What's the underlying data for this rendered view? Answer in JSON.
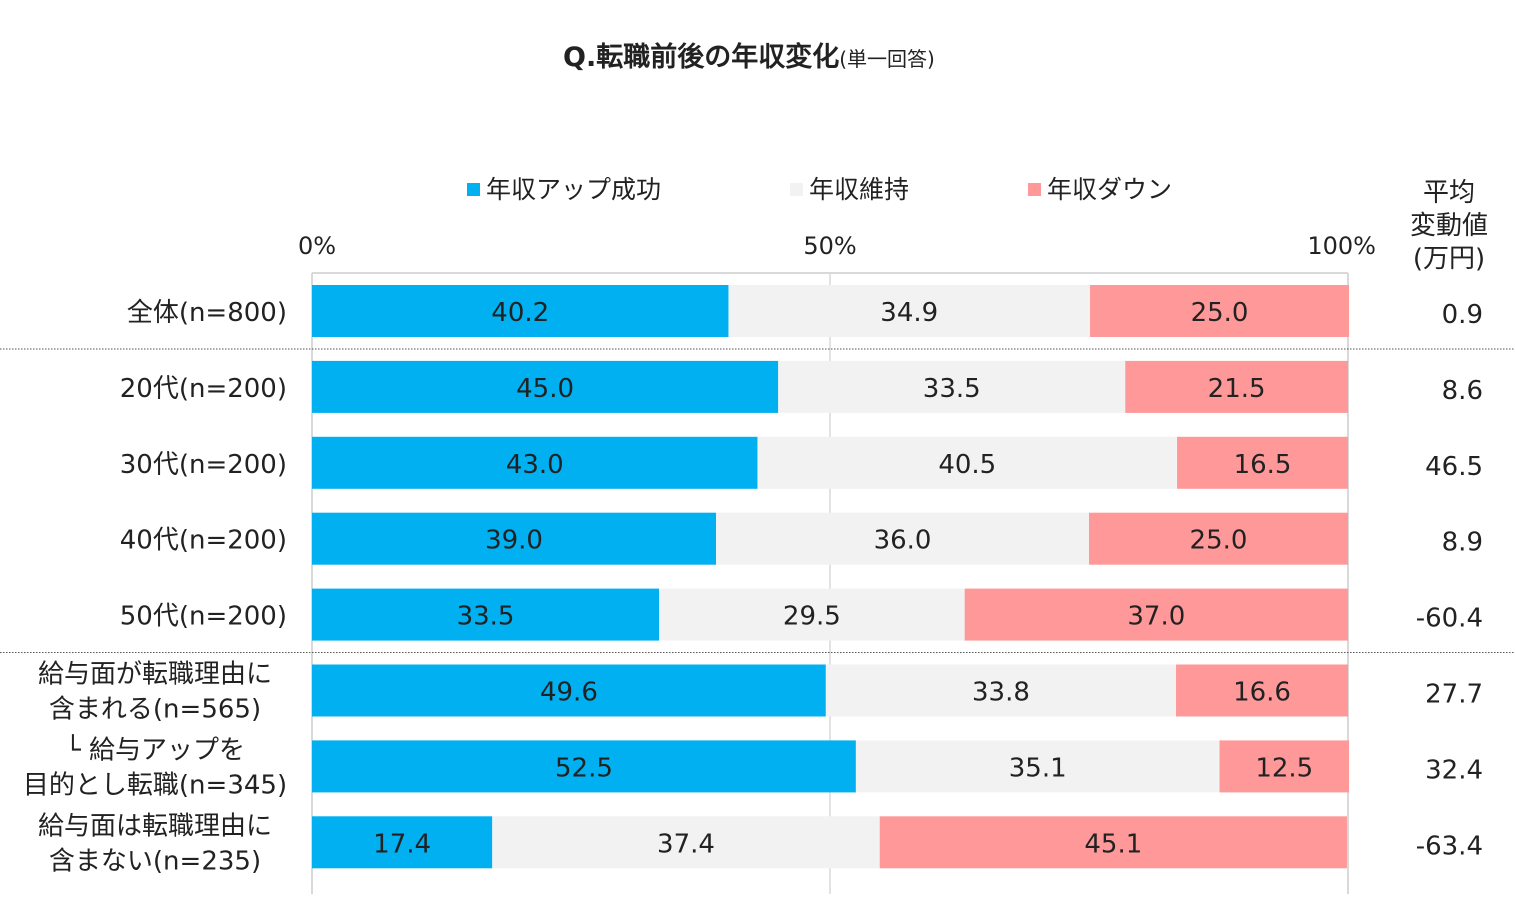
{
  "chart_data": {
    "type": "bar",
    "orientation": "horizontal",
    "stacked": true,
    "title": "Q.転職前後の年収変化",
    "subtitle": "(単一回答)",
    "xlim": [
      0,
      100
    ],
    "x_ticks": [
      "0%",
      "50%",
      "100%"
    ],
    "legend_position": "top",
    "categories": [
      [
        "全体(n=800)"
      ],
      [
        "20代(n=200)"
      ],
      [
        "30代(n=200)"
      ],
      [
        "40代(n=200)"
      ],
      [
        "50代(n=200)"
      ],
      [
        "給与面が転職理由に",
        "含まれる(n=565)"
      ],
      [
        "└ 給与アップを",
        "目的とし転職(n=345)"
      ],
      [
        "給与面は転職理由に",
        "含まない(n=235)"
      ]
    ],
    "series": [
      {
        "name": "年収アップ成功",
        "color": "#00B0F0",
        "values": [
          40.2,
          45.0,
          43.0,
          39.0,
          33.5,
          49.6,
          52.5,
          17.4
        ]
      },
      {
        "name": "年収維持",
        "color": "#F2F2F2",
        "values": [
          34.9,
          33.5,
          40.5,
          36.0,
          29.5,
          33.8,
          35.1,
          37.4
        ]
      },
      {
        "name": "年収ダウン",
        "color": "#FF9999",
        "values": [
          25.0,
          21.5,
          16.5,
          25.0,
          37.0,
          16.6,
          12.5,
          45.1
        ]
      }
    ],
    "side_column": {
      "header": [
        "平均",
        "変動値",
        "(万円)"
      ],
      "values": [
        "0.9",
        "8.6",
        "46.5",
        "8.9",
        "-60.4",
        "27.7",
        "32.4",
        "-63.4"
      ]
    },
    "group_separators_after": [
      0,
      4
    ]
  }
}
